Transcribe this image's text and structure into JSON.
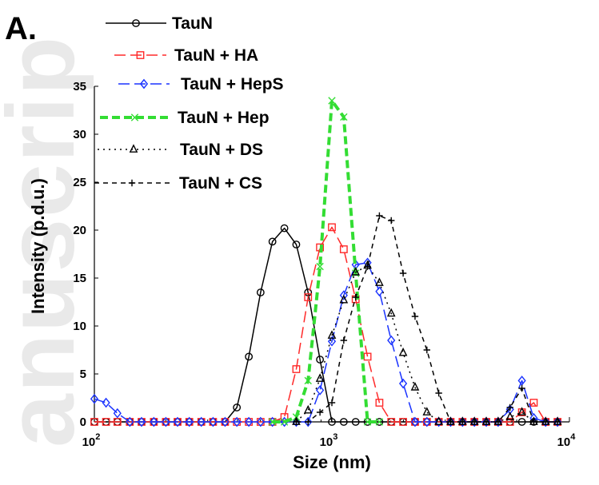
{
  "panel_label": "A.",
  "watermark": "anuscrip",
  "chart_data": {
    "type": "line",
    "title": "",
    "xlabel": "Size (nm)",
    "ylabel": "Intensity (p.d.u.)",
    "xscale": "log",
    "xlim": [
      100,
      10000
    ],
    "ylim": [
      0,
      35
    ],
    "xticks": [
      {
        "value": 100,
        "base": "10",
        "exp": "2"
      },
      {
        "value": 1000,
        "base": "10",
        "exp": "3"
      },
      {
        "value": 10000,
        "base": "10",
        "exp": "4"
      }
    ],
    "yticks": [
      "0",
      "5",
      "10",
      "15",
      "20",
      "25",
      "30",
      "35"
    ],
    "grid": false,
    "legend_position": "top-left",
    "series": [
      {
        "name": "TauN",
        "color": "#000000",
        "dash": "solid",
        "marker": "circle",
        "x": [
          100,
          112,
          125,
          141,
          158,
          178,
          200,
          224,
          251,
          282,
          316,
          355,
          398,
          447,
          501,
          562,
          631,
          708,
          794,
          891,
          1000,
          1122,
          1259,
          1413,
          1585,
          1778,
          1995,
          2239,
          2512,
          2818,
          3162,
          3548,
          3981,
          4467,
          5012,
          5623,
          6310,
          7079,
          7943,
          8913
        ],
        "y": [
          0,
          0,
          0,
          0,
          0,
          0,
          0,
          0,
          0,
          0,
          0,
          0,
          1.5,
          6.8,
          13.5,
          18.8,
          20.2,
          18.5,
          13.5,
          6.5,
          0,
          0,
          0,
          0,
          0,
          0,
          0,
          0,
          0,
          0,
          0,
          0,
          0,
          0,
          0,
          0,
          0,
          0,
          0,
          0
        ]
      },
      {
        "name": "TauN + HA",
        "color": "#ff2a2a",
        "dash": "longdash",
        "marker": "square",
        "x": [
          100,
          112,
          125,
          141,
          158,
          178,
          200,
          224,
          251,
          282,
          316,
          355,
          398,
          447,
          501,
          562,
          631,
          708,
          794,
          891,
          1000,
          1122,
          1259,
          1413,
          1585,
          1778,
          1995,
          2239,
          2512,
          2818,
          3162,
          3548,
          3981,
          4467,
          5012,
          5623,
          6310,
          7079,
          7943,
          8913
        ],
        "y": [
          0,
          0,
          0,
          0,
          0,
          0,
          0,
          0,
          0,
          0,
          0,
          0,
          0,
          0,
          0,
          0,
          0.5,
          5.5,
          13,
          18.2,
          20.3,
          18,
          12.8,
          6.8,
          2,
          0,
          0,
          0,
          0,
          0,
          0,
          0,
          0,
          0,
          0,
          0,
          1,
          2,
          0,
          0
        ]
      },
      {
        "name": "TauN + HepS",
        "color": "#1a33ff",
        "dash": "longdash",
        "marker": "diamond",
        "x": [
          100,
          112,
          125,
          141,
          158,
          178,
          200,
          224,
          251,
          282,
          316,
          355,
          398,
          447,
          501,
          562,
          631,
          708,
          794,
          891,
          1000,
          1122,
          1259,
          1413,
          1585,
          1778,
          1995,
          2239,
          2512,
          2818,
          3162,
          3548,
          3981,
          4467,
          5012,
          5623,
          6310,
          7079,
          7943,
          8913
        ],
        "y": [
          2.4,
          2,
          0.9,
          0,
          0,
          0,
          0,
          0,
          0,
          0,
          0,
          0,
          0,
          0,
          0,
          0,
          0,
          0,
          0,
          3.3,
          8.4,
          13.2,
          16.4,
          16.6,
          13.6,
          8.5,
          4,
          0,
          0,
          0,
          0,
          0,
          0,
          0,
          0,
          1.3,
          4.3,
          0.4,
          0,
          0
        ]
      },
      {
        "name": "TauN + Hep",
        "color": "#33dd33",
        "dash": "thickdash",
        "marker": "x",
        "x": [
          562,
          631,
          708,
          794,
          891,
          1000,
          1122,
          1259,
          1413,
          1585
        ],
        "y": [
          0,
          0,
          0.5,
          4.3,
          16.2,
          33.5,
          31.8,
          15.5,
          0,
          0
        ]
      },
      {
        "name": "TauN + DS",
        "color": "#000000",
        "dash": "dotted",
        "marker": "triangle",
        "x": [
          708,
          794,
          891,
          1000,
          1122,
          1259,
          1413,
          1585,
          1778,
          1995,
          2239,
          2512,
          2818,
          3162,
          3548,
          3981,
          4467,
          5012,
          5623,
          6310,
          7079,
          7943,
          8913
        ],
        "y": [
          0,
          1.2,
          4.5,
          9,
          12.7,
          15.6,
          16.3,
          14.5,
          11.3,
          7.2,
          3.6,
          1,
          0,
          0,
          0,
          0,
          0,
          0,
          0.5,
          1,
          0,
          0,
          0
        ]
      },
      {
        "name": "TauN + CS",
        "color": "#000000",
        "dash": "shortdash",
        "marker": "plus",
        "x": [
          708,
          794,
          891,
          1000,
          1122,
          1259,
          1413,
          1585,
          1778,
          1995,
          2239,
          2512,
          2818,
          3162,
          3548,
          3981,
          4467,
          5012,
          5623,
          6310,
          7079,
          7943,
          8913
        ],
        "y": [
          0,
          0,
          1,
          2,
          8.5,
          13,
          16.2,
          21.5,
          21,
          15.5,
          11,
          7.5,
          3,
          0,
          0,
          0,
          0,
          0,
          1.5,
          3.5,
          0,
          0,
          0
        ]
      }
    ]
  }
}
